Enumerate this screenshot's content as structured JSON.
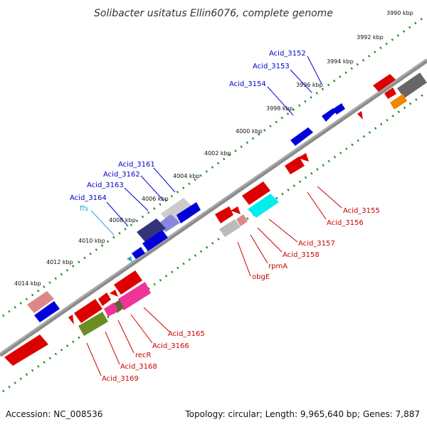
{
  "title": "Solibacter usitatus Ellin6076, complete genome",
  "footer": {
    "accession": "Accession: NC_008536",
    "summary": "Topology: circular; Length: 9,965,640 bp; Genes: 7,887"
  },
  "colors": {
    "backbone": "#8c8c8c",
    "tick_green": "#1a8c1a",
    "label_blue": "#0000cc",
    "label_red": "#cc0000",
    "label_cyan": "#22aadd"
  },
  "ticks": [
    "3990 kbp",
    "3992 kbp",
    "3994 kbp",
    "3996 kbp",
    "3998 kbp",
    "4000 kbp",
    "4002 kbp",
    "4004 kbp",
    "4006 kbp",
    "4008 kbp",
    "4010 kbp",
    "4012 kbp",
    "4014 kbp"
  ],
  "labels": {
    "blue": [
      "Acid_3152",
      "Acid_3153",
      "Acid_3154",
      "Acid_3161",
      "Acid_3162",
      "Acid_3163",
      "Acid_3164"
    ],
    "ffs": "ffs",
    "red": [
      "Acid_3155",
      "Acid_3156",
      "Acid_3157",
      "Acid_3158",
      "rpmA",
      "obgE",
      "Acid_3165",
      "Acid_3166",
      "recR",
      "Acid_3168",
      "Acid_3169"
    ]
  }
}
